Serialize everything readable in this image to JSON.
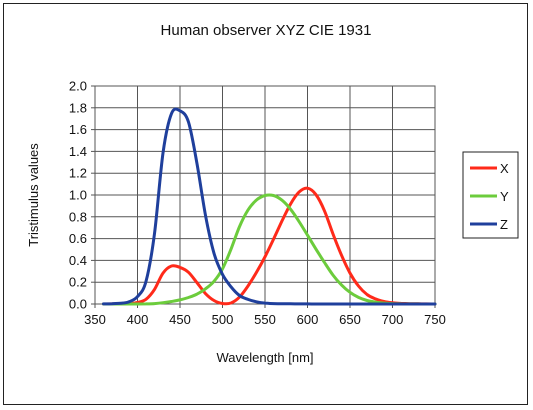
{
  "chart_data": {
    "type": "line",
    "title": "Human observer XYZ CIE 1931",
    "xlabel": "Wavelength [nm]",
    "ylabel": "Tristimulus values",
    "xlim": [
      350,
      750
    ],
    "ylim": [
      0,
      2.0
    ],
    "x_ticks": [
      "350",
      "400",
      "450",
      "500",
      "550",
      "600",
      "650",
      "700",
      "750"
    ],
    "y_ticks": [
      "0.0",
      "0.2",
      "0.4",
      "0.6",
      "0.8",
      "1.0",
      "1.2",
      "1.4",
      "1.6",
      "1.8",
      "2.0"
    ],
    "grid": true,
    "legend_position": "right",
    "x": [
      360,
      370,
      380,
      390,
      400,
      410,
      420,
      430,
      440,
      450,
      460,
      470,
      480,
      490,
      500,
      510,
      520,
      530,
      540,
      550,
      560,
      570,
      580,
      590,
      600,
      610,
      620,
      630,
      640,
      650,
      660,
      670,
      680,
      690,
      700,
      710,
      720,
      730,
      740,
      750
    ],
    "series": [
      {
        "name": "X",
        "color": "#ff2a1a",
        "values": [
          0.0001,
          0.0007,
          0.0014,
          0.0042,
          0.0143,
          0.0435,
          0.1344,
          0.2839,
          0.3483,
          0.3362,
          0.2908,
          0.1954,
          0.0956,
          0.032,
          0.0049,
          0.0093,
          0.0633,
          0.1655,
          0.2904,
          0.4334,
          0.5945,
          0.7621,
          0.9163,
          1.0263,
          1.0622,
          1.0026,
          0.8544,
          0.6424,
          0.4479,
          0.2835,
          0.1649,
          0.0874,
          0.0468,
          0.0227,
          0.0114,
          0.0058,
          0.0029,
          0.0014,
          0.0007,
          0.0003
        ]
      },
      {
        "name": "Y",
        "color": "#6ccc3c",
        "values": [
          0.0,
          0.0,
          0.0,
          0.0001,
          0.0004,
          0.0012,
          0.004,
          0.0116,
          0.023,
          0.038,
          0.06,
          0.091,
          0.139,
          0.208,
          0.323,
          0.503,
          0.71,
          0.862,
          0.954,
          0.995,
          0.995,
          0.952,
          0.87,
          0.757,
          0.631,
          0.503,
          0.381,
          0.265,
          0.175,
          0.107,
          0.061,
          0.032,
          0.017,
          0.0082,
          0.0041,
          0.0021,
          0.001,
          0.0005,
          0.0002,
          0.0001
        ]
      },
      {
        "name": "Z",
        "color": "#1f3f9c",
        "values": [
          0.0006,
          0.0032,
          0.0065,
          0.0201,
          0.0679,
          0.2074,
          0.6456,
          1.3856,
          1.7471,
          1.7721,
          1.6692,
          1.2876,
          0.813,
          0.4652,
          0.272,
          0.1582,
          0.0782,
          0.0422,
          0.0203,
          0.0087,
          0.0039,
          0.0021,
          0.0017,
          0.0011,
          0.0008,
          0.0003,
          0.0002,
          0.0,
          0.0,
          0.0,
          0.0,
          0.0,
          0.0,
          0.0,
          0.0,
          0.0,
          0.0,
          0.0,
          0.0,
          0.0
        ]
      }
    ]
  }
}
